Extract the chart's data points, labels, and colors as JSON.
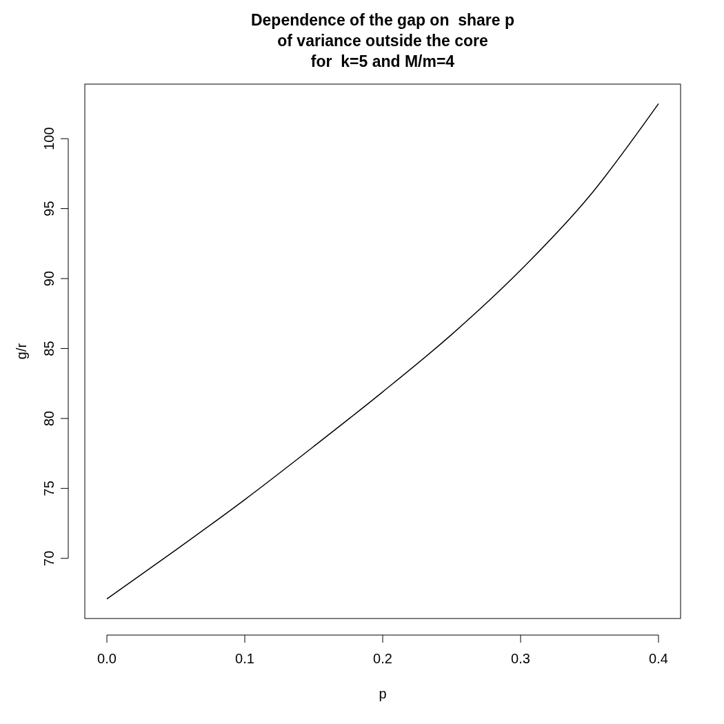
{
  "chart_data": {
    "type": "line",
    "title": "Dependence of the gap on  share p\nof variance outside the core\nfor  k=5 and M/m=4",
    "xlabel": "p",
    "ylabel": "g/r",
    "x": [
      0,
      0.05,
      0.1,
      0.15,
      0.2,
      0.25,
      0.3,
      0.35,
      0.4
    ],
    "series": [
      {
        "color": "#000000",
        "values": [
          67.1,
          70.6,
          74.2,
          78.0,
          81.9,
          86.0,
          90.6,
          95.9,
          102.5
        ]
      }
    ],
    "xlim": [
      -0.016,
      0.416
    ],
    "ylim": [
      65.7,
      103.9
    ],
    "xticks": [
      {
        "value": 0,
        "label": "0.0"
      },
      0.1,
      0.2,
      0.3,
      0.4
    ],
    "yticks": [
      70,
      75,
      80,
      85,
      90,
      95,
      100
    ],
    "grid": false,
    "line_style": "solid"
  }
}
